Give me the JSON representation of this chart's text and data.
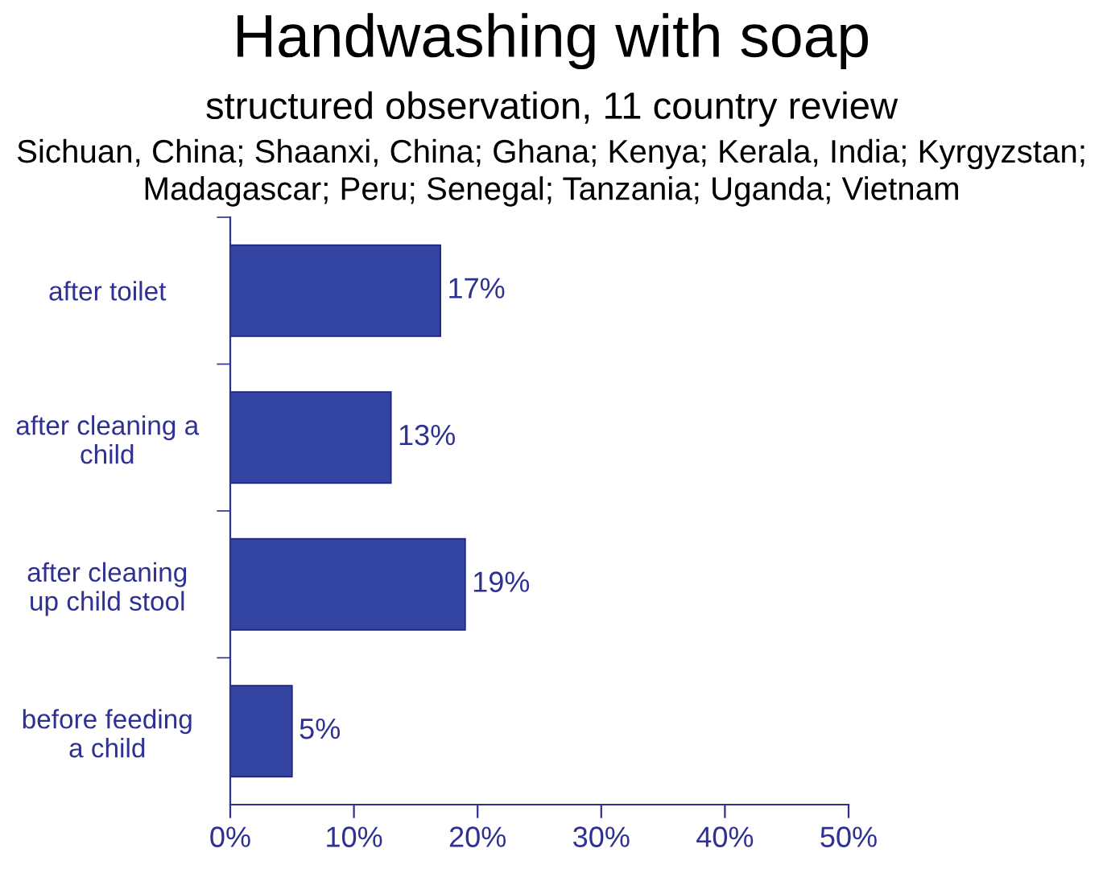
{
  "chart_data": {
    "type": "bar",
    "orientation": "horizontal",
    "title": "Handwashing with soap",
    "subtitle": "structured observation, 11 country review",
    "annotations": [
      "Sichuan, China; Shaanxi, China; Ghana; Kenya; Kerala, India; Kyrgyzstan;\nMadagascar; Peru; Senegal; Tanzania; Uganda; Vietnam"
    ],
    "categories": [
      "after toilet",
      "after cleaning a\nchild",
      "after cleaning\nup child stool",
      "before feeding\na child"
    ],
    "values": [
      17,
      13,
      19,
      5
    ],
    "value_labels": [
      "17%",
      "13%",
      "19%",
      "5%"
    ],
    "color": "#3344a3",
    "xlim": [
      0,
      50
    ],
    "xticks": [
      {
        "value": 0,
        "label": "0%"
      },
      {
        "value": 10,
        "label": "10%"
      },
      {
        "value": 20,
        "label": "20%"
      },
      {
        "value": 30,
        "label": "30%"
      },
      {
        "value": 40,
        "label": "40%"
      },
      {
        "value": 50,
        "label": "50%"
      }
    ],
    "grid": false,
    "legend": false
  }
}
